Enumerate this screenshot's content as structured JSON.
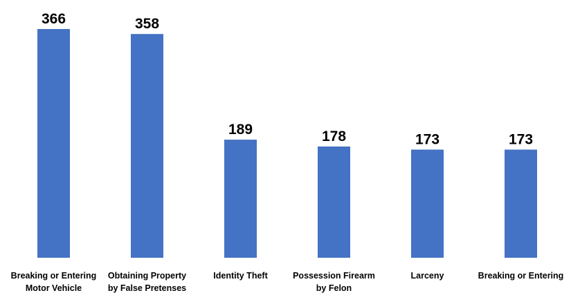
{
  "chart_data": {
    "type": "bar",
    "title": "",
    "xlabel": "",
    "ylabel": "",
    "ylim": [
      0,
      366
    ],
    "grid": false,
    "legend": "none",
    "bar_color": "#4472C4",
    "categories": [
      [
        "Breaking or Entering",
        "Motor Vehicle"
      ],
      [
        "Obtaining Property",
        "by False Pretenses"
      ],
      [
        "Identity Theft"
      ],
      [
        "Possession Firearm",
        "by Felon"
      ],
      [
        "Larceny"
      ],
      [
        "Breaking or Entering"
      ]
    ],
    "values": [
      366,
      358,
      189,
      178,
      173,
      173
    ]
  }
}
